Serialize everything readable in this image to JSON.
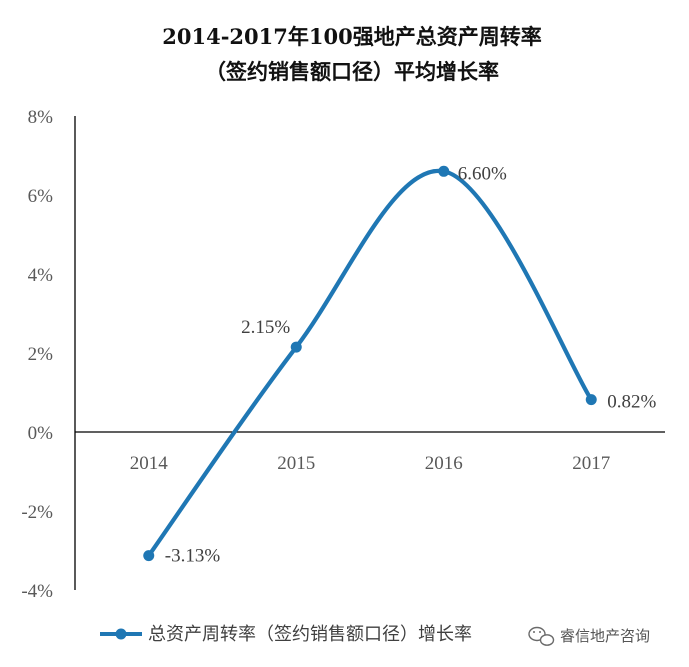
{
  "chart_data": {
    "type": "line",
    "title": "2014-2017年100强地产总资产周转率",
    "subtitle": "（签约销售额口径）平均增长率",
    "categories": [
      "2014",
      "2015",
      "2016",
      "2017"
    ],
    "series": [
      {
        "name": "总资产周转率（签约销售额口径）增长率",
        "values": [
          -3.13,
          2.15,
          6.6,
          0.82
        ],
        "labels": [
          "-3.13%",
          "2.15%",
          "6.60%",
          "0.82%"
        ],
        "color": "#1f77b4",
        "smooth": true,
        "markers": true
      }
    ],
    "yticks": [
      "8%",
      "6%",
      "4%",
      "2%",
      "0%",
      "-2%",
      "-4%"
    ],
    "ytick_values": [
      8,
      6,
      4,
      2,
      0,
      -2,
      -4
    ],
    "ylim": [
      -4,
      8
    ],
    "xlabel": "",
    "ylabel": "",
    "grid": false,
    "legend": "bottom"
  },
  "watermark": {
    "text": "睿信地产咨询",
    "icon": "wechat-icon"
  }
}
